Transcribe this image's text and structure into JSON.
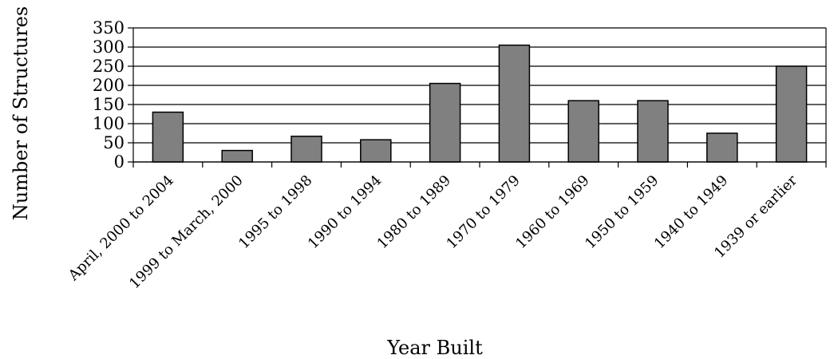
{
  "chart_data": {
    "type": "bar",
    "title": "",
    "xlabel": "Year Built",
    "ylabel": "Number of Structures",
    "categories": [
      "April, 2000 to 2004",
      "1999 to March, 2000",
      "1995 to 1998",
      "1990 to 1994",
      "1980 to 1989",
      "1970 to 1979",
      "1960 to 1969",
      "1950 to 1959",
      "1940 to 1949",
      "1939 or earlier"
    ],
    "values": [
      130,
      30,
      67,
      58,
      205,
      305,
      160,
      160,
      75,
      250
    ],
    "ylim": [
      0,
      350
    ],
    "yticks": [
      0,
      50,
      100,
      150,
      200,
      250,
      300,
      350
    ],
    "grid": true,
    "legend": "none",
    "bar_color": "#808080"
  }
}
